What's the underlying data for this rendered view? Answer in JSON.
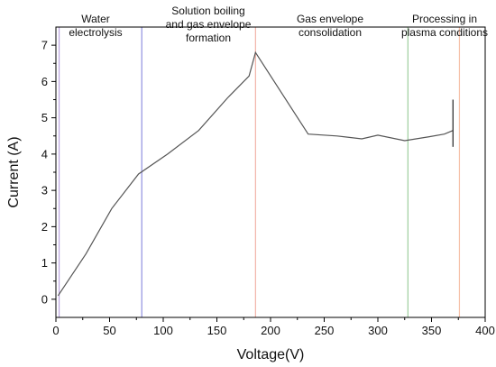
{
  "chart_data": {
    "type": "line",
    "xlabel": "Voltage(V)",
    "ylabel": "Current (A)",
    "xlim": [
      0,
      400
    ],
    "ylim": [
      -0.5,
      7.5
    ],
    "x_ticks": [
      0,
      50,
      100,
      150,
      200,
      250,
      300,
      350,
      400
    ],
    "y_ticks": [
      0,
      1,
      2,
      3,
      4,
      5,
      6,
      7
    ],
    "grid": false,
    "series": [
      {
        "color": "#555555",
        "x": [
          2,
          28,
          52,
          77,
          104,
          133,
          160,
          180,
          186,
          235,
          262,
          285,
          300,
          325,
          348,
          362,
          370
        ],
        "y": [
          0.1,
          1.25,
          2.5,
          3.45,
          4.0,
          4.65,
          5.55,
          6.15,
          6.8,
          4.55,
          4.5,
          4.42,
          4.52,
          4.37,
          4.48,
          4.55,
          4.65
        ]
      }
    ],
    "error_bar": {
      "x": 370,
      "y_low": 4.2,
      "y_high": 5.5,
      "color": "#333333"
    },
    "regions": [
      {
        "x": 3,
        "color": "#b9a3e0",
        "label_lines": [
          "Water",
          "electrolysis"
        ]
      },
      {
        "x": 80,
        "color": "#8f8fe0",
        "label_lines": [
          "Solution boiling",
          "and gas envelope",
          "formation"
        ]
      },
      {
        "x": 186,
        "color": "#f2b3a8",
        "label_lines": [
          "Gas envelope",
          "consolidation"
        ]
      },
      {
        "x": 328,
        "color": "#9fcf9f",
        "label_lines": [
          "Processing in",
          "plasma conditions"
        ]
      },
      {
        "x": 376,
        "color": "#f6c0a8",
        "label_lines": []
      }
    ]
  }
}
